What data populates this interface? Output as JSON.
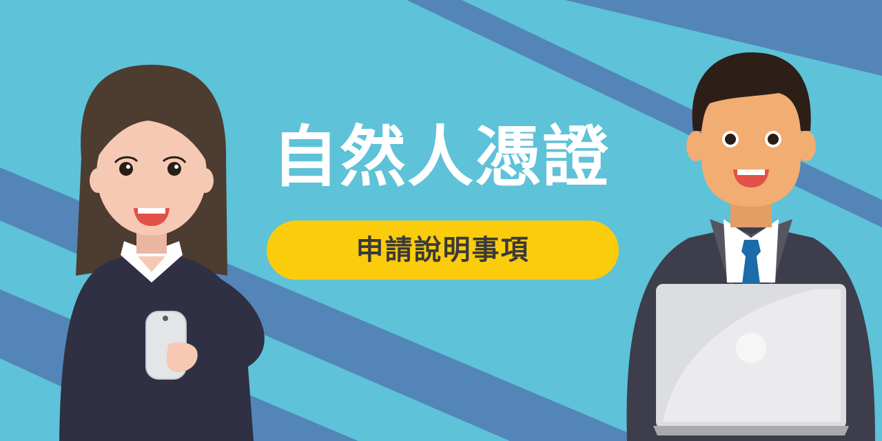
{
  "banner": {
    "title": "自然人憑證",
    "subtitle": "申請說明事項"
  },
  "colors": {
    "background": "#5ec2d8",
    "stripe": "#5385b8",
    "pill": "#fbcc0c",
    "title_text": "#ffffff",
    "subtitle_text": "#3a3a3a",
    "suit": "#2f3043",
    "woman_hair": "#4d3c30",
    "man_skin": "#f1ad72",
    "woman_skin": "#f6c9b4",
    "tie": "#1b6ca8",
    "laptop": "#dcdde0"
  },
  "illustrations": [
    {
      "name": "businesswoman",
      "holding": "smartphone"
    },
    {
      "name": "businessman",
      "holding": "laptop"
    }
  ]
}
